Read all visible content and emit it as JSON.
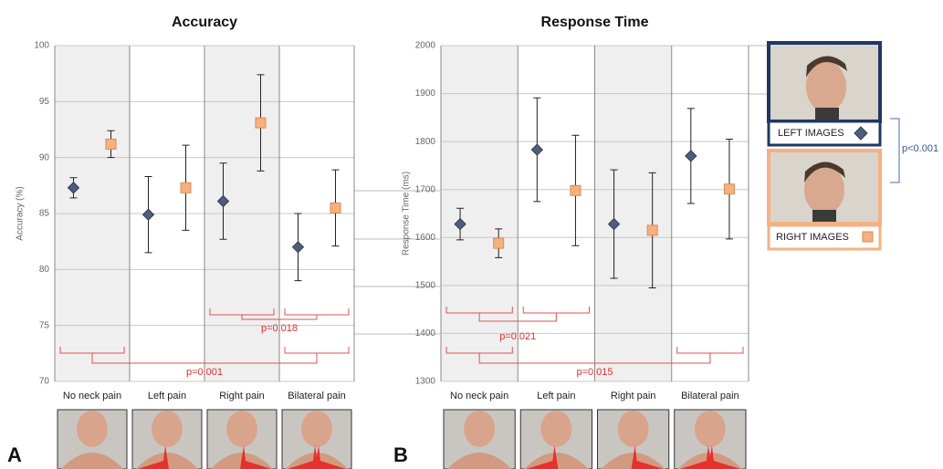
{
  "chart_data": [
    {
      "type": "dot",
      "title": "Accuracy",
      "y_label": "Accuracy (%)",
      "panel_label": "A",
      "categories": [
        "No neck pain",
        "Left pain",
        "Right pain",
        "Bilateral pain"
      ],
      "series": [
        {
          "name": "LEFT IMAGES",
          "color": "#4e5d7c",
          "marker": "diamond",
          "values": [
            87.3,
            84.9,
            86.1,
            82.0
          ],
          "errors": [
            0.9,
            3.4,
            3.4,
            3.0
          ]
        },
        {
          "name": "RIGHT IMAGES",
          "color": "#f4b183",
          "marker": "square",
          "values": [
            91.2,
            87.3,
            93.1,
            85.5
          ],
          "errors": [
            1.2,
            3.8,
            4.3,
            3.4
          ]
        }
      ],
      "ylim": [
        70,
        100
      ],
      "yticks": [
        70,
        75,
        80,
        85,
        90,
        95,
        100
      ],
      "grid": true,
      "annotations": [
        {
          "text": "p=0.018"
        },
        {
          "text": "p=0.001"
        }
      ]
    },
    {
      "type": "dot",
      "title": "Response Time",
      "y_label": "Response  Time (ms)",
      "panel_label": "B",
      "categories": [
        "No neck pain",
        "Left pain",
        "Right pain",
        "Bilateral pain"
      ],
      "series": [
        {
          "color": "#4e5d7c",
          "marker": "diamond",
          "values": [
            1628,
            1783,
            1628,
            1770
          ],
          "errors": [
            33,
            108,
            113,
            99
          ]
        },
        {
          "color": "#f4b183",
          "marker": "square",
          "values": [
            1588,
            1698,
            1615,
            1701
          ],
          "errors": [
            30,
            115,
            120,
            104
          ]
        }
      ],
      "ylim": [
        1300,
        2000
      ],
      "yticks": [
        1300,
        1400,
        1500,
        1600,
        1700,
        1800,
        1900,
        2000
      ],
      "grid": true,
      "annotations": [
        {
          "text": "p=0.021"
        },
        {
          "text": "p=0.015"
        }
      ]
    }
  ],
  "legend_annotation": "p<0.001"
}
